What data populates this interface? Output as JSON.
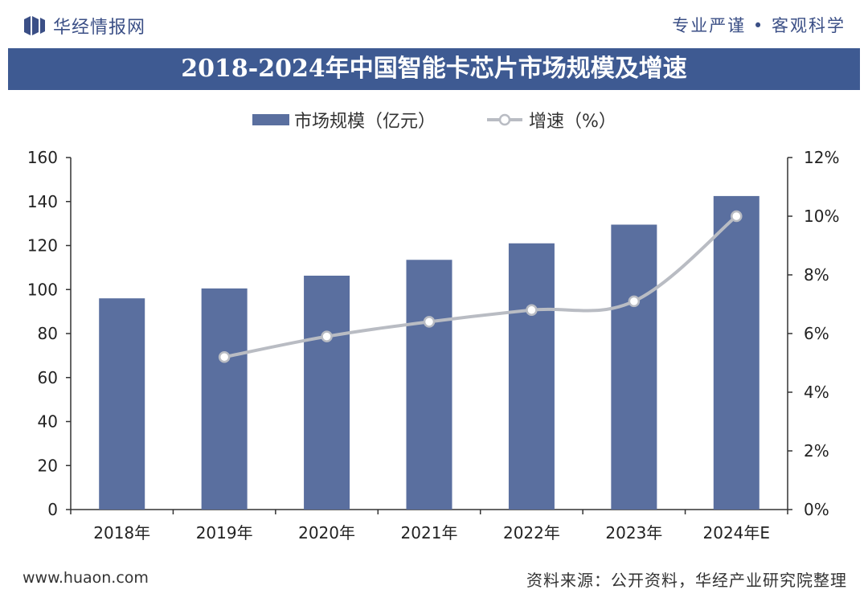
{
  "header": {
    "brand": "华经情报网",
    "slogan": "专业严谨 • 客观科学"
  },
  "title": "2018-2024年中国智能卡芯片市场规模及增速",
  "legend": {
    "bar": "市场规模（亿元）",
    "line": "增速（%）"
  },
  "footer": {
    "website": "www.huaon.com",
    "source": "资料来源：公开资料，华经产业研究院整理"
  },
  "colors": {
    "bar": "#5a6f9f",
    "line": "#b9bcc3",
    "title_band": "#3e5a92",
    "brand": "#3b4f86"
  },
  "chart_data": {
    "type": "bar",
    "categories": [
      "2018年",
      "2019年",
      "2020年",
      "2021年",
      "2022年",
      "2023年",
      "2024年E"
    ],
    "series": [
      {
        "name": "市场规模（亿元）",
        "type": "bar",
        "axis": "left",
        "values": [
          96,
          100.5,
          106.3,
          113.5,
          121,
          129.5,
          142.5
        ]
      },
      {
        "name": "增速（%）",
        "type": "line",
        "axis": "right",
        "values": [
          null,
          5.2,
          5.9,
          6.4,
          6.8,
          7.1,
          10.0
        ]
      }
    ],
    "y_left": {
      "min": 0,
      "max": 160,
      "ticks": [
        0,
        20,
        40,
        60,
        80,
        100,
        120,
        140,
        160
      ]
    },
    "y_right": {
      "min": 0,
      "max": 12,
      "ticks": [
        "0%",
        "2%",
        "4%",
        "6%",
        "8%",
        "10%",
        "12%"
      ]
    },
    "legend_position": "top"
  }
}
